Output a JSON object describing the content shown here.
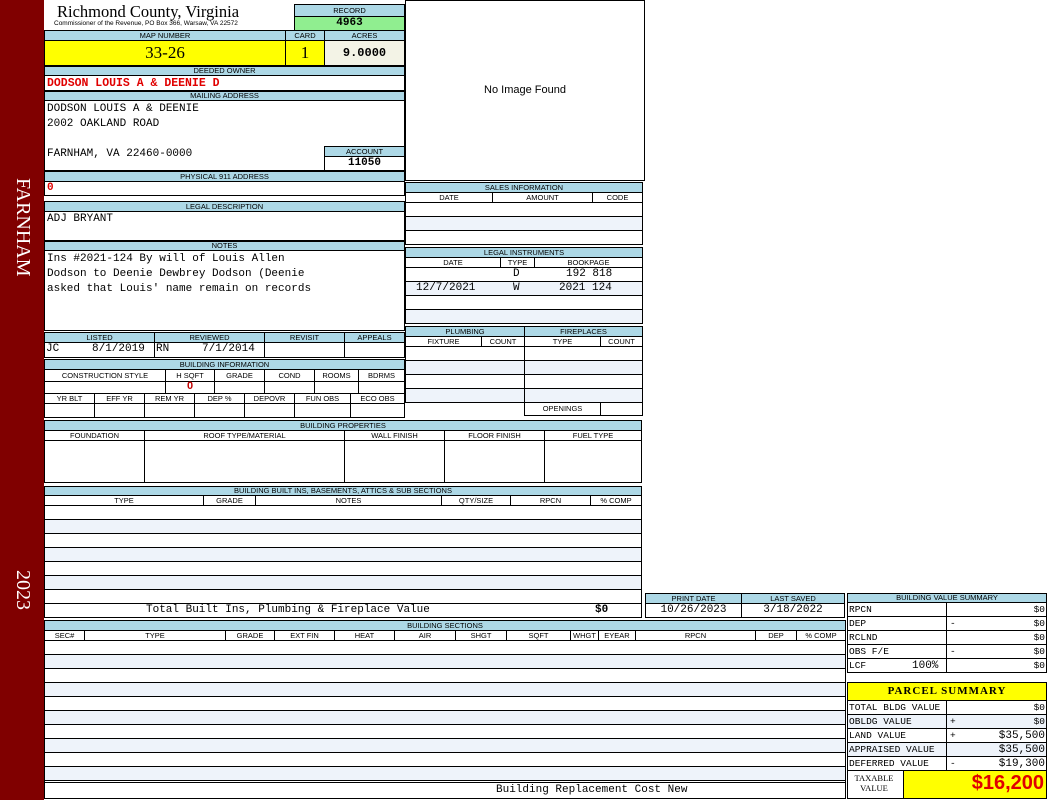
{
  "sidebar": {
    "town": "FARNHAM",
    "year": "2023",
    "color": "#800000"
  },
  "header": {
    "county": "Richmond County, Virginia",
    "subtitle": "Commissioner of the Revenue, PO Box 366, Warsaw, VA 22572"
  },
  "record": {
    "label": "RECORD",
    "value": "4963"
  },
  "map": {
    "label": "MAP NUMBER",
    "value": "33-26"
  },
  "card": {
    "label": "CARD",
    "value": "1"
  },
  "acres": {
    "label": "ACRES",
    "value": "9.0000"
  },
  "owner": {
    "label": "DEEDED OWNER",
    "value": "DODSON LOUIS A & DEENIE D"
  },
  "mailing": {
    "label": "MAILING ADDRESS",
    "line1": "DODSON LOUIS A & DEENIE",
    "line2": "2002 OAKLAND ROAD",
    "line3": "FARNHAM, VA 22460-0000"
  },
  "account": {
    "label": "ACCOUNT",
    "value": "11050"
  },
  "physical": {
    "label": "PHYSICAL 911 ADDRESS",
    "value": "0"
  },
  "legal": {
    "label": "LEGAL DESCRIPTION",
    "value": "ADJ BRYANT"
  },
  "notes": {
    "label": "NOTES",
    "line1": "Ins #2021-124 By will of Louis Allen",
    "line2": "Dodson to Deenie Dewbrey Dodson (Deenie",
    "line3": "asked that Louis' name remain on records"
  },
  "image": {
    "text": "No Image Found"
  },
  "sales": {
    "label": "SALES INFORMATION",
    "cols": [
      "DATE",
      "AMOUNT",
      "CODE"
    ]
  },
  "instruments": {
    "label": "LEGAL INSTRUMENTS",
    "cols": [
      "DATE",
      "TYPE",
      "BOOKPAGE"
    ],
    "rows": [
      {
        "date": "",
        "type": "D",
        "bookpage": "192 818"
      },
      {
        "date": "12/7/2021",
        "type": "W",
        "bookpage": "2021 124"
      }
    ]
  },
  "review": {
    "cols": [
      "LISTED",
      "REVIEWED",
      "REVISIT",
      "APPEALS"
    ],
    "listed_by": "JC",
    "listed_date": "8/1/2019",
    "reviewed_by": "RN",
    "reviewed_date": "7/1/2014"
  },
  "building_info": {
    "label": "BUILDING INFORMATION",
    "cols1": [
      "CONSTRUCTION STYLE",
      "H SQFT",
      "GRADE",
      "COND",
      "ROOMS",
      "BDRMS"
    ],
    "hsqft": "0",
    "cols2": [
      "YR BLT",
      "EFF YR",
      "REM YR",
      "DEP %",
      "DEPOVR",
      "FUN OBS",
      "ECO OBS"
    ]
  },
  "plumbing": {
    "label": "PLUMBING",
    "cols": [
      "FIXTURE",
      "COUNT"
    ]
  },
  "fireplaces": {
    "label": "FIREPLACES",
    "cols": [
      "TYPE",
      "COUNT"
    ],
    "openings": "OPENINGS"
  },
  "properties": {
    "label": "BUILDING PROPERTIES",
    "cols": [
      "FOUNDATION",
      "ROOF TYPE/MATERIAL",
      "WALL FINISH",
      "FLOOR FINISH",
      "FUEL TYPE"
    ]
  },
  "builtins": {
    "label": "BUILDING BUILT INS, BASEMENTS, ATTICS & SUB SECTIONS",
    "cols": [
      "TYPE",
      "GRADE",
      "NOTES",
      "QTY/SIZE",
      "RPCN",
      "% COMP"
    ],
    "total_label": "Total Built Ins, Plumbing & Fireplace Value",
    "total_value": "$0"
  },
  "dates": {
    "print_label": "PRINT DATE",
    "print_value": "10/26/2023",
    "saved_label": "LAST SAVED",
    "saved_value": "3/18/2022"
  },
  "sections": {
    "label": "BUILDING SECTIONS",
    "cols": [
      "SEC#",
      "TYPE",
      "GRADE",
      "EXT FIN",
      "HEAT",
      "AIR",
      "SHGT",
      "SQFT",
      "WHGT",
      "EYEAR",
      "RPCN",
      "DEP",
      "% COMP"
    ],
    "footer": "Building Replacement Cost New"
  },
  "value_summary": {
    "label": "BUILDING VALUE SUMMARY",
    "rows": [
      {
        "label": "RPCN",
        "op": "",
        "value": "$0"
      },
      {
        "label": "DEP",
        "op": "-",
        "value": "$0"
      },
      {
        "label": "RCLND",
        "op": "",
        "value": "$0"
      },
      {
        "label": "OBS F/E",
        "op": "-",
        "value": "$0"
      },
      {
        "label": "LCF",
        "pct": "100%",
        "op": "",
        "value": "$0"
      }
    ]
  },
  "parcel": {
    "label": "PARCEL SUMMARY",
    "rows": [
      {
        "label": "TOTAL BLDG VALUE",
        "op": "",
        "value": "$0"
      },
      {
        "label": "OBLDG VALUE",
        "op": "+",
        "value": "$0"
      },
      {
        "label": "LAND VALUE",
        "op": "+",
        "value": "$35,500"
      },
      {
        "label": "APPRAISED VALUE",
        "op": "",
        "value": "$35,500"
      },
      {
        "label": "DEFERRED VALUE",
        "op": "-",
        "value": "$19,300"
      }
    ],
    "taxable_label": "TAXABLE VALUE",
    "taxable_value": "$16,200"
  }
}
